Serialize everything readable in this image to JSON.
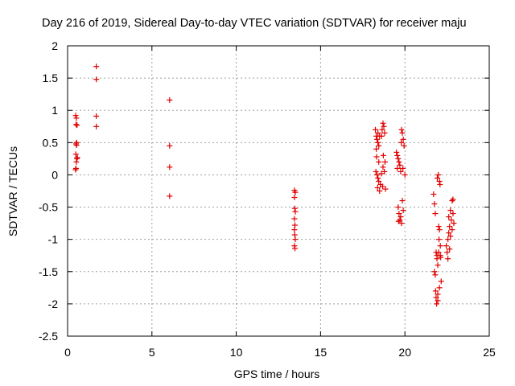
{
  "chart_data": {
    "type": "scatter",
    "title": "Day 216 of 2019, Sidereal Day-to-day VTEC variation (SDTVAR) for receiver maju",
    "xlabel": "GPS time / hours",
    "ylabel": "SDTVAR / TECUs",
    "xlim": [
      0,
      25
    ],
    "ylim": [
      -2.5,
      2
    ],
    "x_ticks": [
      0,
      5,
      10,
      15,
      20,
      25
    ],
    "x_tick_labels": [
      "0",
      "5",
      "10",
      "15",
      "20",
      "25"
    ],
    "y_ticks": [
      -2.5,
      -2,
      -1.5,
      -1,
      -0.5,
      0,
      0.5,
      1,
      1.5,
      2
    ],
    "y_tick_labels": [
      "-2.5",
      "-2",
      "-1.5",
      "-1",
      "-0.5",
      "0",
      "0.5",
      "1",
      "1.5",
      "2"
    ],
    "grid": true,
    "marker": "+",
    "marker_color": "#e00000",
    "series": [
      {
        "name": "SDTVAR",
        "points": [
          [
            0.48,
            0.92
          ],
          [
            0.52,
            0.88
          ],
          [
            0.5,
            0.78
          ],
          [
            0.56,
            0.77
          ],
          [
            0.54,
            0.5
          ],
          [
            0.5,
            0.48
          ],
          [
            0.53,
            0.46
          ],
          [
            0.49,
            0.32
          ],
          [
            0.58,
            0.27
          ],
          [
            0.55,
            0.25
          ],
          [
            0.52,
            0.2
          ],
          [
            0.5,
            0.1
          ],
          [
            0.47,
            0.08
          ],
          [
            1.7,
            1.68
          ],
          [
            1.7,
            1.48
          ],
          [
            1.7,
            0.91
          ],
          [
            1.7,
            0.75
          ],
          [
            6.05,
            1.16
          ],
          [
            6.05,
            0.45
          ],
          [
            6.05,
            0.12
          ],
          [
            6.05,
            -0.33
          ],
          [
            13.45,
            -0.24
          ],
          [
            13.5,
            -0.27
          ],
          [
            13.45,
            -0.35
          ],
          [
            13.47,
            -0.52
          ],
          [
            13.5,
            -0.57
          ],
          [
            13.45,
            -0.68
          ],
          [
            13.48,
            -0.78
          ],
          [
            13.45,
            -0.85
          ],
          [
            13.47,
            -0.93
          ],
          [
            13.5,
            -1.0
          ],
          [
            13.45,
            -1.1
          ],
          [
            13.48,
            -1.14
          ],
          [
            18.25,
            0.7
          ],
          [
            18.3,
            0.6
          ],
          [
            18.35,
            0.55
          ],
          [
            18.4,
            0.5
          ],
          [
            18.45,
            0.45
          ],
          [
            18.32,
            0.28
          ],
          [
            18.28,
            0.05
          ],
          [
            18.35,
            0.0
          ],
          [
            18.4,
            -0.05
          ],
          [
            18.45,
            -0.1
          ],
          [
            18.38,
            -0.2
          ],
          [
            18.5,
            -0.25
          ],
          [
            18.55,
            -0.15
          ],
          [
            18.6,
            0.02
          ],
          [
            18.62,
            0.6
          ],
          [
            18.65,
            0.7
          ],
          [
            18.7,
            0.8
          ],
          [
            18.75,
            0.75
          ],
          [
            18.8,
            0.65
          ],
          [
            18.72,
            0.3
          ],
          [
            18.7,
            0.12
          ],
          [
            18.68,
            -0.18
          ],
          [
            18.85,
            -0.22
          ],
          [
            18.78,
            0.05
          ],
          [
            18.82,
            0.2
          ],
          [
            18.3,
            0.4
          ],
          [
            18.4,
            0.65
          ],
          [
            18.5,
            0.6
          ],
          [
            18.45,
            0.2
          ],
          [
            19.5,
            0.35
          ],
          [
            19.55,
            0.3
          ],
          [
            19.6,
            0.25
          ],
          [
            19.65,
            0.2
          ],
          [
            19.7,
            0.15
          ],
          [
            19.75,
            0.05
          ],
          [
            19.8,
            0.7
          ],
          [
            19.85,
            0.65
          ],
          [
            19.9,
            0.55
          ],
          [
            19.95,
            0.45
          ],
          [
            20.0,
            0.0
          ],
          [
            19.6,
            -0.5
          ],
          [
            19.65,
            -0.6
          ],
          [
            19.7,
            -0.7
          ],
          [
            19.75,
            -0.65
          ],
          [
            19.8,
            -0.75
          ],
          [
            19.85,
            -0.4
          ],
          [
            19.9,
            -0.55
          ],
          [
            19.62,
            -0.72
          ],
          [
            19.55,
            0.1
          ],
          [
            19.78,
            0.5
          ],
          [
            19.88,
            0.1
          ],
          [
            21.7,
            -0.3
          ],
          [
            21.75,
            -0.45
          ],
          [
            21.8,
            -0.6
          ],
          [
            21.85,
            -1.2
          ],
          [
            21.9,
            -1.25
          ],
          [
            21.75,
            -1.5
          ],
          [
            21.8,
            -1.55
          ],
          [
            21.82,
            -1.8
          ],
          [
            21.85,
            -1.9
          ],
          [
            21.88,
            -2.0
          ],
          [
            21.95,
            -1.95
          ],
          [
            22.0,
            -0.8
          ],
          [
            22.05,
            -0.85
          ],
          [
            22.1,
            -1.1
          ],
          [
            22.0,
            -1.2
          ],
          [
            22.1,
            -1.25
          ],
          [
            21.92,
            -0.05
          ],
          [
            21.98,
            0.0
          ],
          [
            22.05,
            -0.1
          ],
          [
            22.08,
            -0.15
          ],
          [
            21.9,
            -1.3
          ],
          [
            22.02,
            -1.0
          ],
          [
            22.15,
            -1.65
          ],
          [
            22.05,
            -1.75
          ],
          [
            21.95,
            -1.4
          ],
          [
            21.95,
            -1.85
          ],
          [
            22.12,
            -1.28
          ],
          [
            22.45,
            -1.1
          ],
          [
            22.5,
            -1.2
          ],
          [
            22.55,
            -1.3
          ],
          [
            22.55,
            -1.0
          ],
          [
            22.6,
            -0.9
          ],
          [
            22.65,
            -0.8
          ],
          [
            22.6,
            -0.65
          ],
          [
            22.7,
            -0.55
          ],
          [
            22.75,
            -0.7
          ],
          [
            22.8,
            -0.4
          ],
          [
            22.85,
            -0.38
          ],
          [
            22.9,
            -0.75
          ],
          [
            22.7,
            -0.95
          ],
          [
            22.65,
            -1.15
          ],
          [
            22.85,
            -0.6
          ],
          [
            22.8,
            -0.85
          ]
        ]
      }
    ]
  }
}
